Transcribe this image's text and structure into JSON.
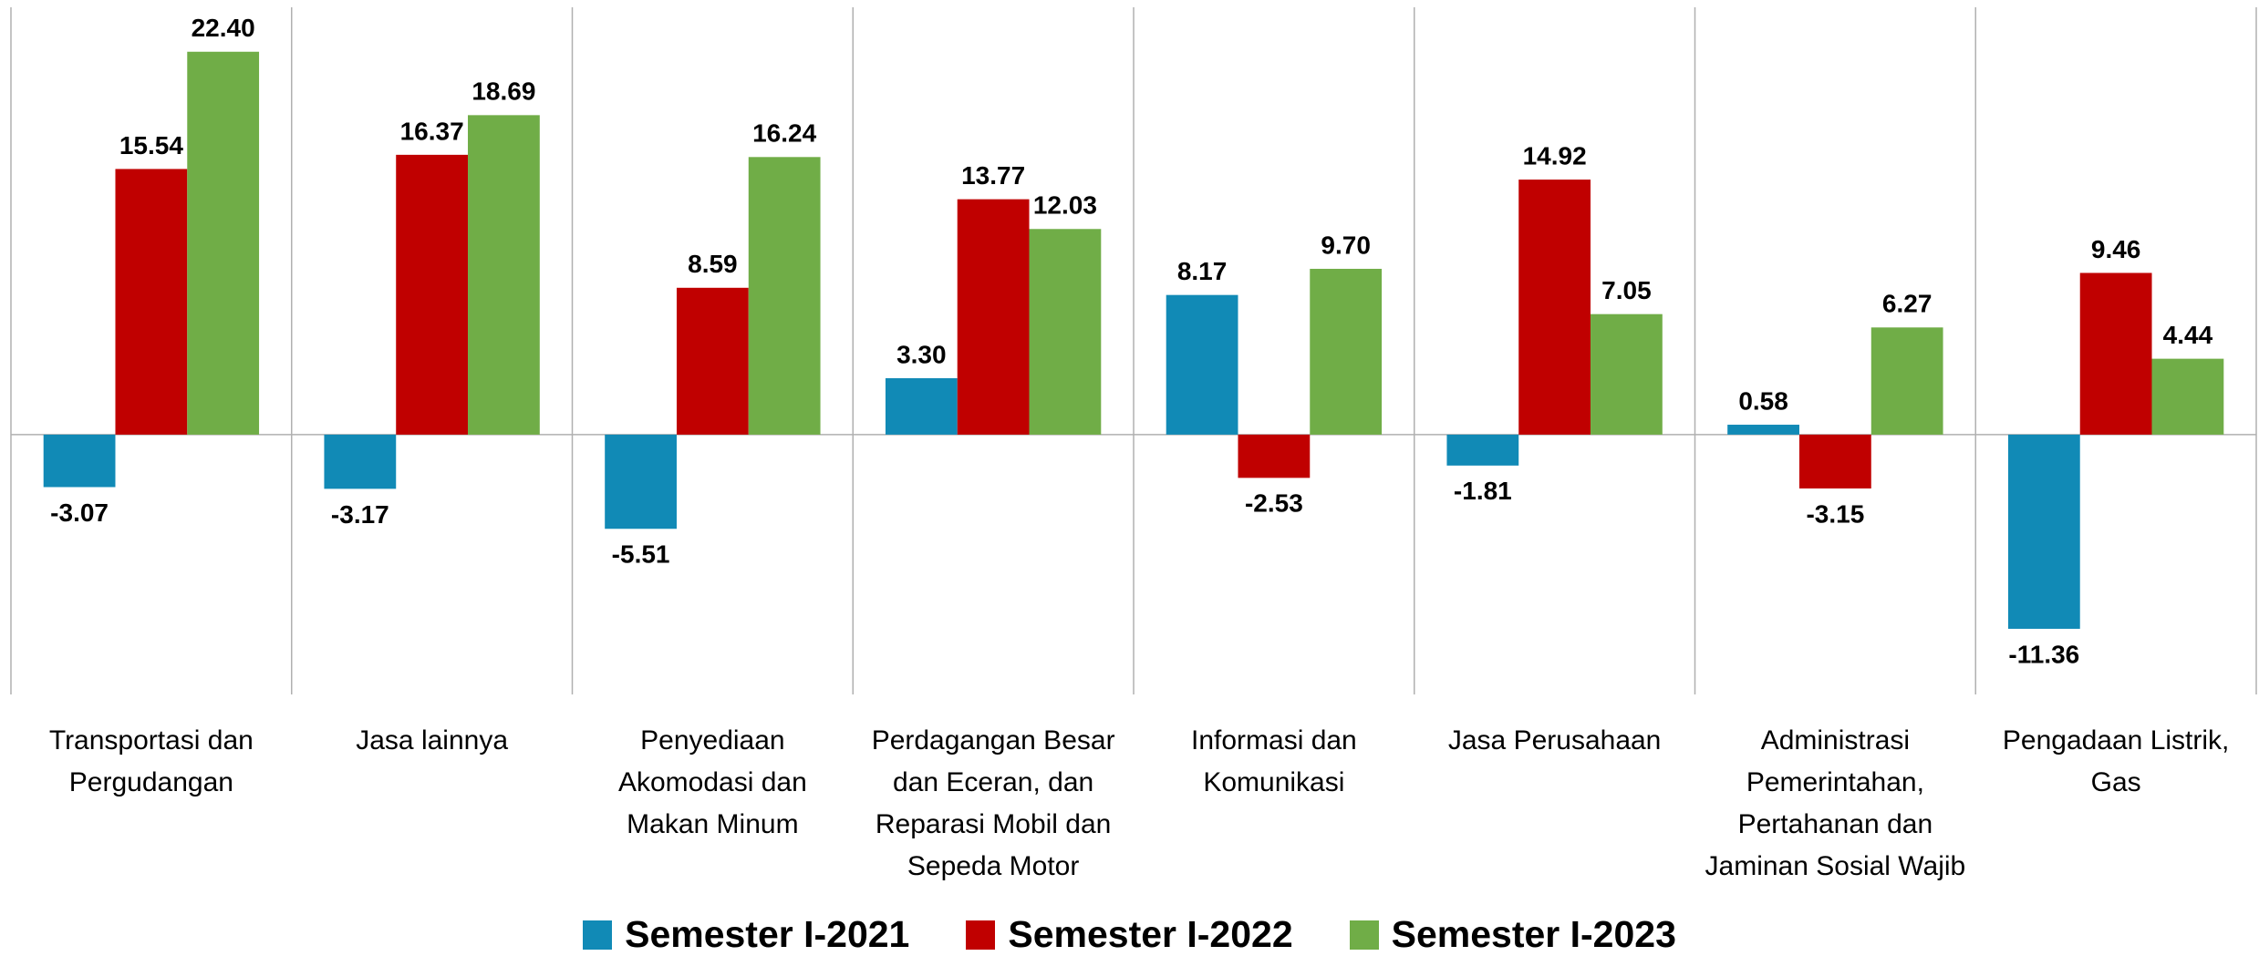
{
  "chart_data": {
    "type": "bar",
    "categories": [
      "Transportasi dan Pergudangan",
      "Jasa lainnya",
      "Penyediaan Akomodasi dan Makan Minum",
      "Perdagangan Besar dan Eceran, dan Reparasi Mobil dan Sepeda Motor",
      "Informasi dan Komunikasi",
      "Jasa Perusahaan",
      "Administrasi Pemerintahan, Pertahanan dan Jaminan Sosial Wajib",
      "Pengadaan Listrik, Gas"
    ],
    "series": [
      {
        "name": "Semester I-2021",
        "color": "#118ab6",
        "values": [
          -3.07,
          -3.17,
          -5.51,
          3.3,
          8.17,
          -1.81,
          0.58,
          -11.36
        ],
        "value_labels": [
          "-3.07",
          "-3.17",
          "-5.51",
          "3.30",
          "8.17",
          "-1.81",
          "0.58",
          "-11.36"
        ]
      },
      {
        "name": "Semester I-2022",
        "color": "#c00000",
        "values": [
          15.54,
          16.37,
          8.59,
          13.77,
          -2.53,
          14.92,
          -3.15,
          9.46
        ],
        "value_labels": [
          "15.54",
          "16.37",
          "8.59",
          "13.77",
          "-2.53",
          "14.92",
          "-3.15",
          "9.46"
        ]
      },
      {
        "name": "Semester I-2023",
        "color": "#70ad47",
        "values": [
          22.4,
          18.69,
          16.24,
          12.03,
          9.7,
          7.05,
          6.27,
          4.44
        ],
        "value_labels": [
          "22.40",
          "18.69",
          "16.24",
          "12.03",
          "9.70",
          "7.05",
          "6.27",
          "4.44"
        ]
      }
    ],
    "ylim": [
      -15.2,
      25
    ],
    "legend": "bottom"
  }
}
